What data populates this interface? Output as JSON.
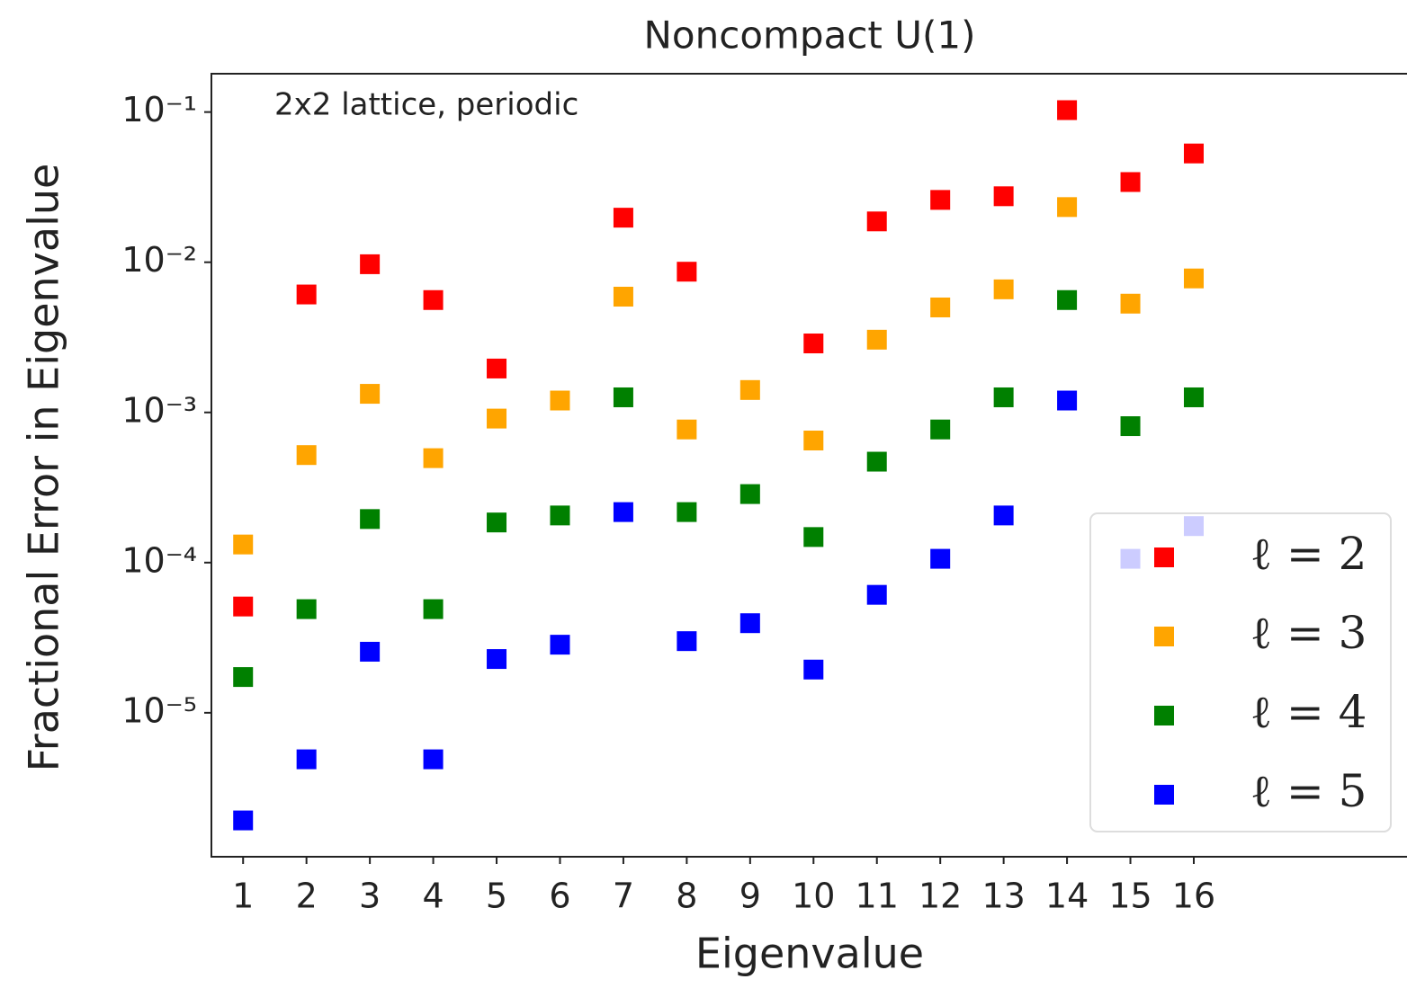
{
  "chart_data": {
    "type": "scatter",
    "title": "Noncompact U(1)",
    "annotation": "2x2 lattice, periodic",
    "xlabel": "Eigenvalue",
    "ylabel": "Fractional Error in Eigenvalue",
    "x": [
      1,
      2,
      3,
      4,
      5,
      6,
      7,
      8,
      9,
      10,
      11,
      12,
      13,
      14,
      15,
      16
    ],
    "series": [
      {
        "name": "ℓ = 2",
        "color": "#ff0000",
        "values": [
          5.1e-05,
          0.0061,
          0.0097,
          0.0056,
          0.00196,
          null,
          0.0198,
          0.00865,
          null,
          0.00288,
          0.0187,
          0.026,
          0.0275,
          0.103,
          0.0342,
          0.053
        ]
      },
      {
        "name": "ℓ = 3",
        "color": "#ffa500",
        "values": [
          0.000132,
          0.00052,
          0.00133,
          0.000496,
          0.00091,
          0.0012,
          0.0059,
          0.00077,
          0.00141,
          0.00065,
          0.00305,
          0.005,
          0.0066,
          0.0233,
          0.0053,
          0.0078
        ]
      },
      {
        "name": "ℓ = 4",
        "color": "#008000",
        "values": [
          1.73e-05,
          4.9e-05,
          0.000195,
          4.9e-05,
          0.000185,
          0.000206,
          0.00126,
          0.000217,
          0.000286,
          0.000148,
          0.00047,
          0.00077,
          0.00126,
          0.0056,
          0.00081,
          0.00126
        ]
      },
      {
        "name": "ℓ = 5",
        "color": "#0000ff",
        "values": [
          1.92e-06,
          4.9e-06,
          2.55e-05,
          4.9e-06,
          2.28e-05,
          2.84e-05,
          0.000217,
          3e-05,
          3.95e-05,
          1.94e-05,
          6.1e-05,
          0.000106,
          0.000206,
          0.0012,
          0.000106,
          0.000175
        ]
      }
    ],
    "xlim": [
      0.5,
      19.35
    ],
    "xticks": [
      1,
      2,
      3,
      4,
      5,
      6,
      7,
      8,
      9,
      10,
      11,
      12,
      13,
      14,
      15,
      16
    ],
    "ylim": [
      1.1e-06,
      0.18
    ],
    "ylog": true,
    "yticks": [
      {
        "value": 0.1,
        "label": "10⁻¹"
      },
      {
        "value": 0.01,
        "label": "10⁻²"
      },
      {
        "value": 0.001,
        "label": "10⁻³"
      },
      {
        "value": 0.0001,
        "label": "10⁻⁴"
      },
      {
        "value": 1e-05,
        "label": "10⁻⁵"
      }
    ],
    "legend": "lower right",
    "grid": false
  }
}
